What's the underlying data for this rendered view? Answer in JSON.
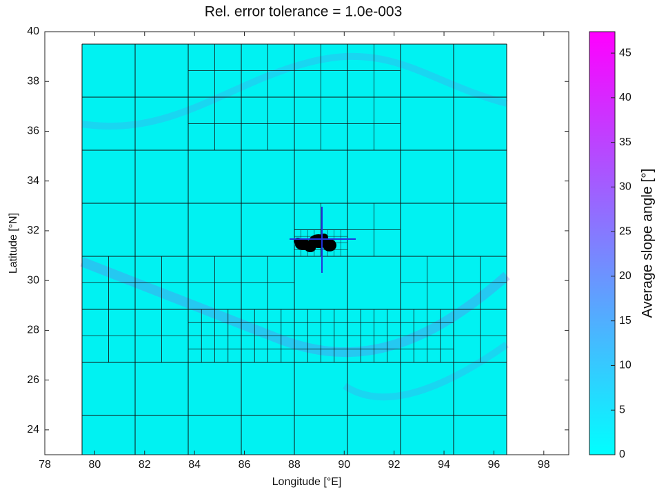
{
  "chart_data": {
    "type": "heatmap",
    "title": "Rel. error tolerance = 1.0e-003",
    "x_label": "Longitude [°E]",
    "y_label": "Latitude [°N]",
    "xlim": [
      78,
      99
    ],
    "ylim": [
      23,
      40
    ],
    "xticks": [
      78,
      80,
      82,
      84,
      86,
      88,
      90,
      92,
      94,
      96,
      98
    ],
    "yticks": [
      24,
      26,
      28,
      30,
      32,
      34,
      36,
      38,
      40
    ],
    "colorbar": {
      "label": "Average slope angle [°]",
      "clim": [
        0,
        47.4
      ],
      "ticks": [
        0,
        5,
        10,
        15,
        20,
        25,
        30,
        35,
        40,
        45
      ],
      "colormap": [
        "#00ffff",
        "#ff00ff"
      ]
    }
  }
}
